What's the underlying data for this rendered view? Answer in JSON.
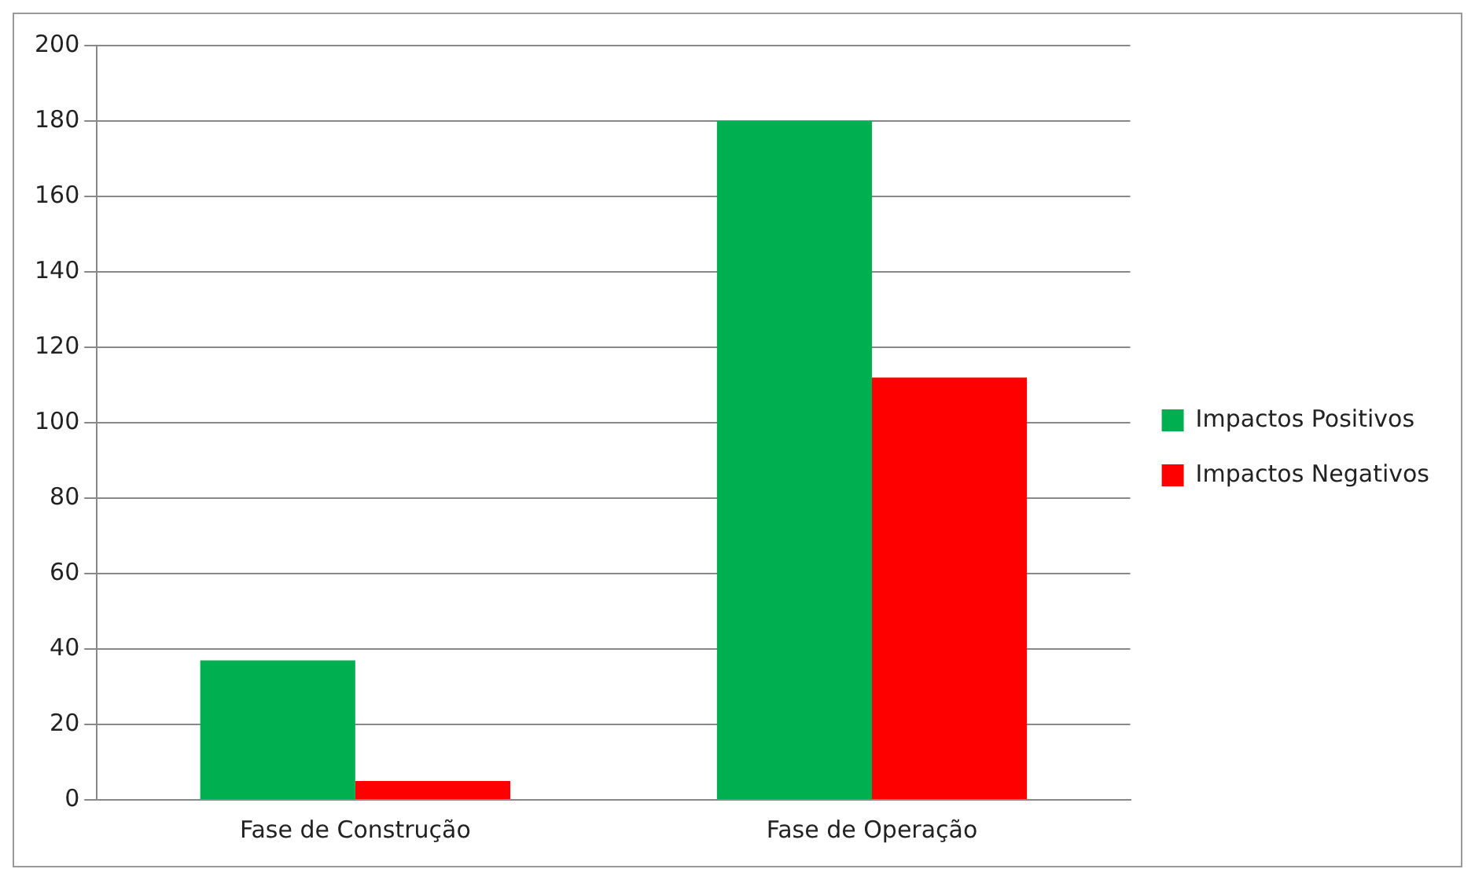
{
  "chart_data": {
    "type": "bar",
    "categories": [
      "Fase de Construção",
      "Fase de Operação"
    ],
    "series": [
      {
        "name": "Impactos Positivos",
        "color": "#00b050",
        "values": [
          37,
          180
        ]
      },
      {
        "name": "Impactos Negativos",
        "color": "#ff0000",
        "values": [
          5,
          112
        ]
      }
    ],
    "ylim": [
      0,
      200
    ],
    "yticks": [
      0,
      20,
      40,
      60,
      80,
      100,
      120,
      140,
      160,
      180,
      200
    ],
    "grid": "y",
    "legend": "right"
  }
}
